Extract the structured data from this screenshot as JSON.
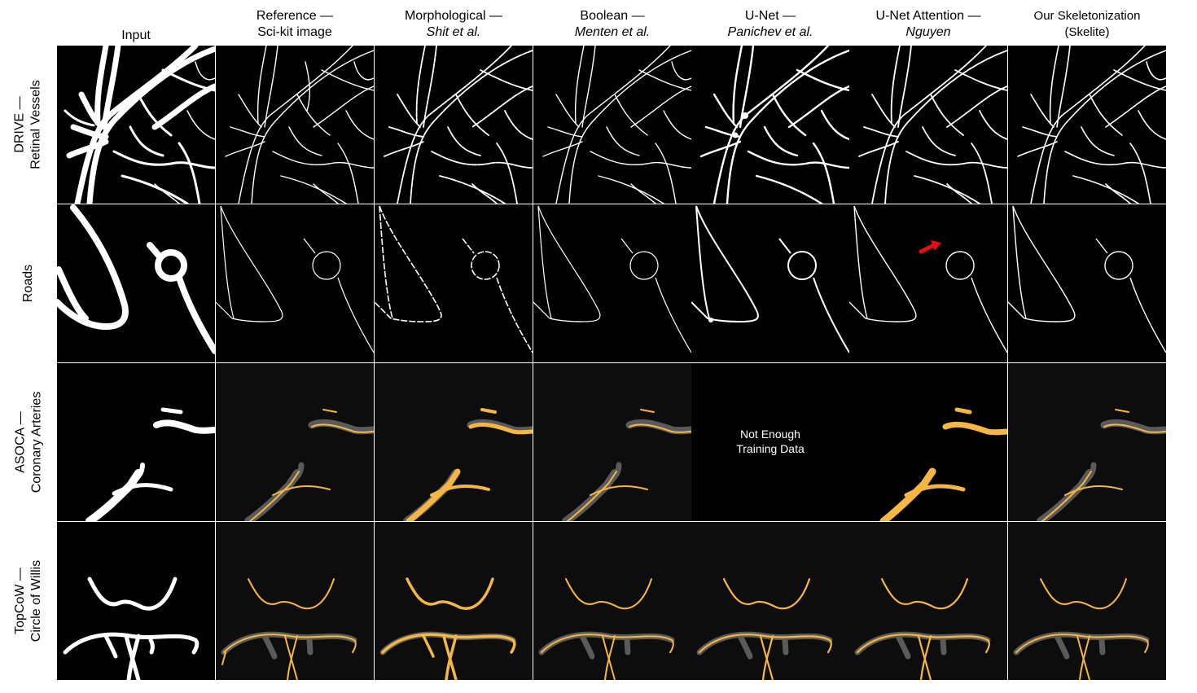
{
  "columns": [
    {
      "line1": "Input",
      "line2": "",
      "italic": false
    },
    {
      "line1": "Reference —",
      "line2": "Sci-kit image",
      "italic": false
    },
    {
      "line1": "Morphological —",
      "line2": "Shit et al.",
      "italic": true
    },
    {
      "line1": "Boolean —",
      "line2": "Menten et al.",
      "italic": true
    },
    {
      "line1": "U-Net —",
      "line2": "Panichev et al.",
      "italic": true
    },
    {
      "line1": "U-Net Attention —",
      "line2": "Nguyen",
      "italic": true
    },
    {
      "line1": "Our Skeletonization",
      "line2": "(Skelite)",
      "italic": false
    }
  ],
  "rows": [
    {
      "line1": "DRIVE —",
      "line2": "Retinal Vessels"
    },
    {
      "line1": "Roads",
      "line2": ""
    },
    {
      "line1": "ASOCA —",
      "line2": "Coronary Arteries"
    },
    {
      "line1": "TopCoW —",
      "line2": "Circle of Willis"
    }
  ],
  "nodata_text": {
    "line1": "Not Enough",
    "line2": "Training Data"
  },
  "colors": {
    "skeleton": "#ffffff",
    "skeleton_3d": "#f5b642",
    "volume_shadow": "#5a5a5a",
    "arrow": "#e01010",
    "panel_bg": "#000000"
  }
}
